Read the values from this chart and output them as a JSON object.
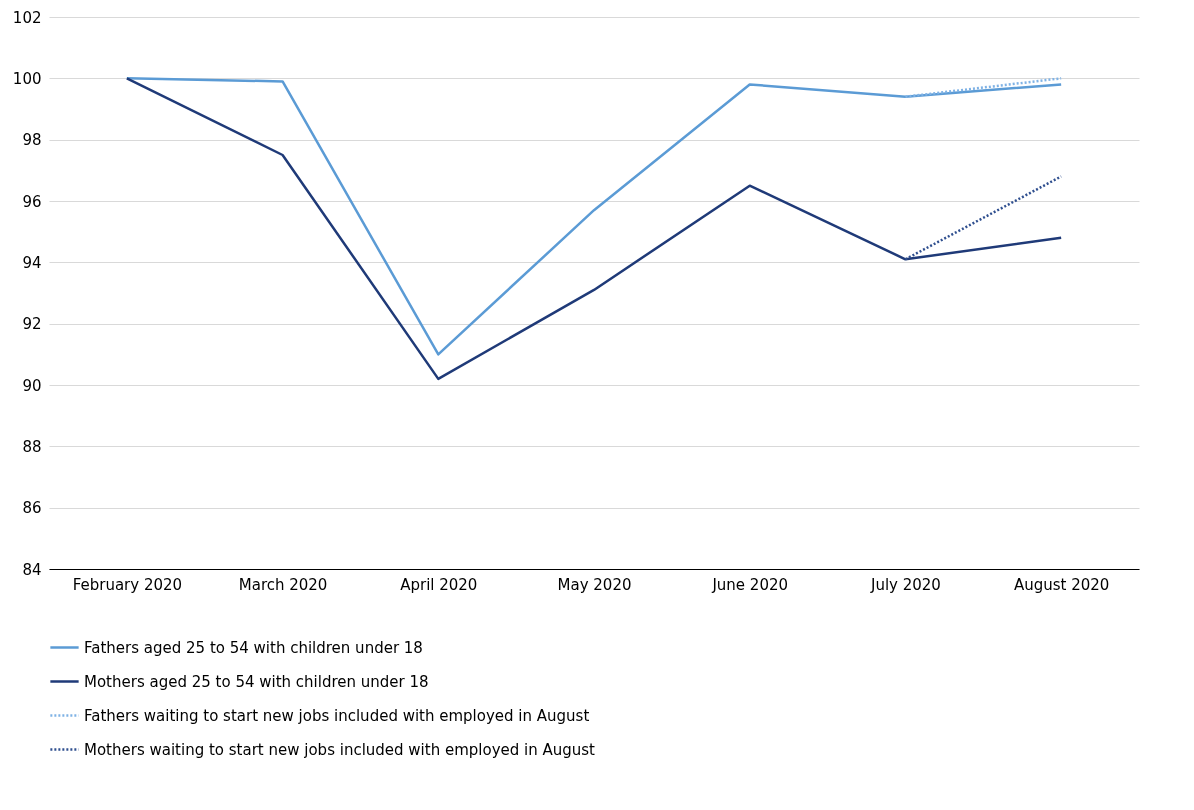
{
  "chart_data": {
    "type": "line",
    "categories": [
      "February 2020",
      "March 2020",
      "April 2020",
      "May 2020",
      "June 2020",
      "July 2020",
      "August 2020"
    ],
    "series": [
      {
        "name": "Fathers aged 25 to 54 with children under 18",
        "color": "#5b9bd5",
        "line_style": "solid",
        "values": [
          100,
          99.9,
          91.0,
          95.7,
          99.8,
          99.4,
          99.8
        ]
      },
      {
        "name": "Mothers aged 25 to 54 with children under 18",
        "color": "#1f3a78",
        "line_style": "solid",
        "values": [
          100,
          97.5,
          90.2,
          93.1,
          96.5,
          94.1,
          94.8
        ]
      },
      {
        "name": "Fathers waiting to start new jobs included with employed in August",
        "color": "#7fb2e5",
        "line_style": "dotted",
        "values": [
          null,
          null,
          null,
          null,
          null,
          99.4,
          100.0
        ]
      },
      {
        "name": "Mothers waiting to start new jobs included with employed in August",
        "color": "#2f4f8f",
        "line_style": "dotted",
        "values": [
          null,
          null,
          null,
          null,
          null,
          94.1,
          96.8
        ]
      }
    ],
    "ylim": [
      84,
      102
    ],
    "yticks": [
      84,
      86,
      88,
      90,
      92,
      94,
      96,
      98,
      100,
      102
    ],
    "grid": "y",
    "legend": "bottom",
    "marker": "none"
  }
}
